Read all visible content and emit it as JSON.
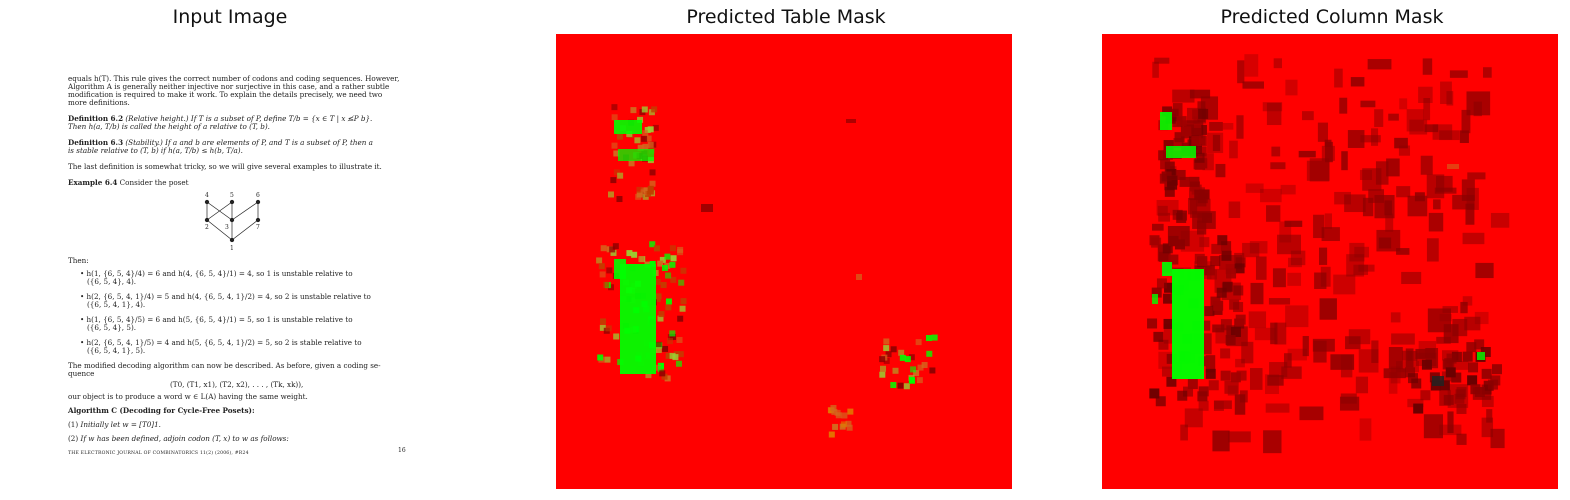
{
  "panels": {
    "input_title": "Input Image",
    "table_mask_title": "Predicted Table Mask",
    "column_mask_title": "Predicted Column Mask"
  },
  "document": {
    "lines": [
      "equals h(T). This rule gives the correct number of codons and coding sequences. However,",
      "Algorithm A is generally neither injective nor surjective in this case, and a rather subtle",
      "modification is required to make it work. To explain the details precisely, we need two",
      "more definitions.",
      "Definition 6.2",
      "(Relative height.) If T is a subset of P, define T/b = {x ∈ T | x ≰P b}.",
      "Then h(a, T/b) is called the height of a relative to (T, b).",
      "Definition 6.3",
      "(Stability.) If a and b are elements of P, and T is a subset of P, then a",
      "is stable relative to (T, b) if h(a, T/b) ≤ h(b, T/a).",
      "The last definition is somewhat tricky, so we will give several examples to illustrate it.",
      "Example 6.4",
      "Consider the poset",
      "Then:",
      "h(1, {6, 5, 4}/4) = 6 and h(4, {6, 5, 4}/1) = 4, so 1 is unstable relative to",
      "({6, 5, 4}, 4).",
      "h(2, {6, 5, 4, 1}/4) = 5 and h(4, {6, 5, 4, 1}/2) = 4, so 2 is unstable relative to",
      "({6, 5, 4, 1}, 4).",
      "h(1, {6, 5, 4}/5) = 6 and h(5, {6, 5, 4}/1) = 5, so 1 is unstable relative to",
      "({6, 5, 4}, 5).",
      "h(2, {6, 5, 4, 1}/5) = 4 and h(5, {6, 5, 4, 1}/2) = 5, so 2 is stable relative to",
      "({6, 5, 4, 1}, 5).",
      "The modified decoding algorithm can now be described. As before, given a coding se-",
      "quence",
      "(T0, (T1, x1), (T2, x2), . . . , (Tk, xk)),",
      "our object is to produce a word w ∈ L(A) having the same weight.",
      "Algorithm C (Decoding for Cycle-Free Posets):",
      "(1)",
      "Initially let w = [T0]1.",
      "(2)",
      "If w has been defined, adjoin codon (T, x) to w as follows:",
      "THE ELECTRONIC JOURNAL OF COMBINATORICS 11(2) (2006), #R24",
      "16"
    ],
    "poset_labels": [
      "4",
      "5",
      "6",
      "2",
      "3",
      "7",
      "1"
    ]
  },
  "colors": {
    "background_class": "#ff0000",
    "table_class": "#00ff00",
    "dark_overlay": "#8b0000",
    "mixed": "#c86400"
  }
}
